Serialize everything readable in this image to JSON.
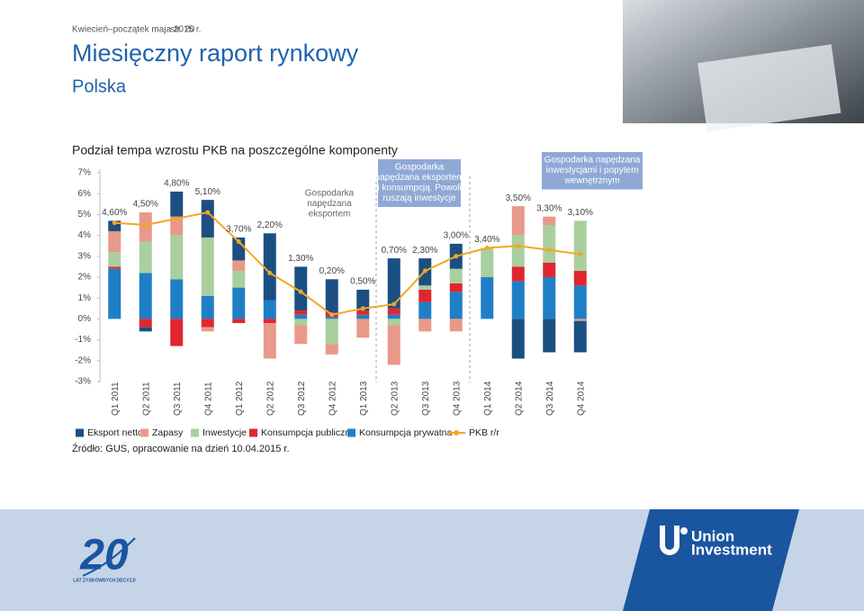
{
  "header": {
    "date": "Kwiecień–początek maja 2015 r.",
    "page": "str. 20",
    "title": "Miesięczny raport rynkowy",
    "subtitle": "Polska"
  },
  "chart_data": {
    "type": "stacked_bar",
    "title": "Podział tempa wzrostu PKB na poszczególne komponenty",
    "categories": [
      "Q1 2011",
      "Q2 2011",
      "Q3 2011",
      "Q4 2011",
      "Q1 2012",
      "Q2 2012",
      "Q3 2012",
      "Q4 2012",
      "Q1 2013",
      "Q2 2013",
      "Q3 2013",
      "Q4 2013",
      "Q1 2014",
      "Q2 2014",
      "Q3 2014",
      "Q4 2014"
    ],
    "series": [
      {
        "name": "Eksport netto",
        "color": "#1b4f82",
        "values": [
          0.5,
          -0.2,
          1.2,
          1.8,
          1.1,
          3.2,
          2.1,
          1.6,
          1.0,
          2.4,
          1.3,
          1.2,
          0,
          -1.9,
          -1.6,
          -1.5
        ]
      },
      {
        "name": "Zapasy",
        "color": "#e8998a",
        "values": [
          1.0,
          1.4,
          0.9,
          -0.2,
          0.5,
          -1.7,
          -0.9,
          -0.5,
          -0.9,
          -1.9,
          -0.6,
          -0.6,
          0,
          1.4,
          0.4,
          -0.1
        ]
      },
      {
        "name": "Inwestycje",
        "color": "#a9cf9f",
        "values": [
          0.7,
          1.5,
          2.1,
          2.8,
          0.8,
          0,
          -0.3,
          -1.2,
          0,
          -0.3,
          0.2,
          0.7,
          1.4,
          1.5,
          1.8,
          2.4
        ]
      },
      {
        "name": "Konsumpcja publiczna",
        "color": "#e0262f",
        "values": [
          0.1,
          -0.4,
          -1.3,
          -0.4,
          -0.2,
          -0.2,
          0.2,
          0.2,
          0.2,
          0.3,
          0.6,
          0.4,
          0,
          0.7,
          0.7,
          0.7
        ]
      },
      {
        "name": "Konsumpcja prywatna",
        "color": "#1f7fc6",
        "values": [
          2.4,
          2.2,
          1.9,
          1.1,
          1.5,
          0.9,
          0.2,
          0.1,
          0.2,
          0.2,
          0.8,
          1.3,
          2.0,
          1.8,
          2.0,
          1.6
        ]
      }
    ],
    "line": {
      "name": "PKB r/r",
      "color": "#f5a623",
      "values": [
        4.6,
        4.5,
        4.8,
        5.1,
        3.7,
        2.2,
        1.3,
        0.2,
        0.5,
        0.7,
        2.3,
        3.0,
        3.4,
        3.5,
        3.3,
        3.1
      ],
      "value_labels": [
        "4,60%",
        "4,50%",
        "4,80%",
        "5,10%",
        "3,70%",
        "2,20%",
        "1,30%",
        "0,20%",
        "0,50%",
        "0,70%",
        "2,30%",
        "3,00%",
        "3,40%",
        "3,50%",
        "3,30%",
        "3,10%"
      ]
    },
    "ylim": [
      -3,
      7
    ],
    "yticks": [
      {
        "value": -3,
        "label": "-3%"
      },
      {
        "value": -2,
        "label": "-2%"
      },
      {
        "value": -1,
        "label": "-1%"
      },
      {
        "value": 0,
        "label": "0%"
      },
      {
        "value": 1,
        "label": "1%"
      },
      {
        "value": 2,
        "label": "2%"
      },
      {
        "value": 3,
        "label": "3%"
      },
      {
        "value": 4,
        "label": "4%"
      },
      {
        "value": 5,
        "label": "5%"
      },
      {
        "value": 6,
        "label": "6%"
      },
      {
        "value": 7,
        "label": "7%"
      }
    ],
    "grid": false,
    "annotations": [
      {
        "lines": [
          "Gospodarka",
          "napędzana",
          "eksportem"
        ]
      },
      {
        "lines": [
          "Gospodarka",
          "napędzana eksportem",
          "i konsumpcją. Powoli",
          "ruszają inwestycje"
        ]
      },
      {
        "lines": [
          "Gospodarka napędzana",
          "inwestycjami i popytem",
          "wewnętrznym"
        ]
      }
    ],
    "source": "Źródło: GUS, opracowanie na dzień 10.04.2015 r."
  },
  "footer": {
    "anniversary": "20",
    "anniversary_caption": "LAT ZYSKOWNYCH DECYZJI",
    "brand_line1": "Union",
    "brand_line2": "Investment"
  }
}
